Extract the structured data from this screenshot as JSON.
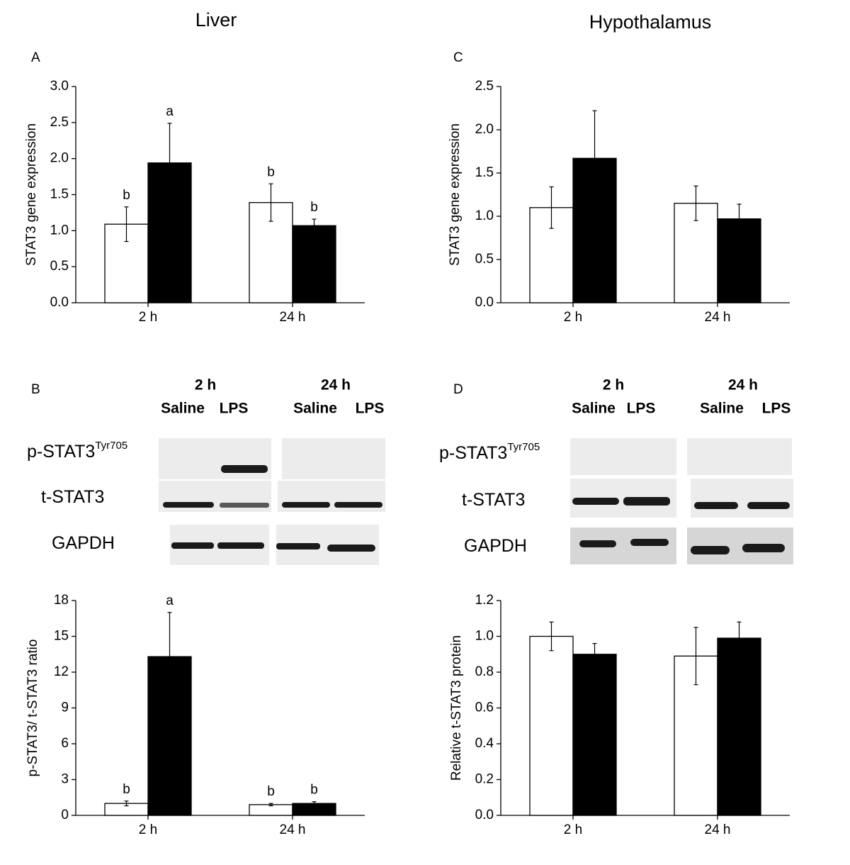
{
  "columns": [
    "Liver",
    "Hypothalamus"
  ],
  "blots": [
    {
      "groups": [
        {
          "time": "2 h",
          "conditions": [
            "Saline",
            "LPS"
          ]
        },
        {
          "time": "24 h",
          "conditions": [
            "Saline",
            "LPS"
          ]
        }
      ],
      "rows": [
        {
          "label": "p-STAT3",
          "sup": "Tyr705"
        },
        {
          "label": "t-STAT3"
        },
        {
          "label": "GAPDH"
        }
      ]
    },
    {
      "groups": [
        {
          "time": "2 h",
          "conditions": [
            "Saline",
            "LPS"
          ]
        },
        {
          "time": "24 h",
          "conditions": [
            "Saline",
            "LPS"
          ]
        }
      ],
      "rows": [
        {
          "label": "p-STAT3",
          "sup": "Tyr705"
        },
        {
          "label": "t-STAT3"
        },
        {
          "label": "GAPDH"
        }
      ]
    }
  ],
  "chart_data": [
    {
      "type": "bar",
      "panel": "A",
      "ylabel": "STAT3 gene expression",
      "categories": [
        "2 h",
        "24 h"
      ],
      "series": [
        {
          "color": "#ffffff",
          "values": [
            1.09,
            1.39
          ],
          "errors": [
            0.24,
            0.26
          ],
          "letters": [
            "b",
            "b"
          ]
        },
        {
          "color": "#000000",
          "values": [
            1.94,
            1.07
          ],
          "errors": [
            0.55,
            0.09
          ],
          "letters": [
            "a",
            "b"
          ]
        }
      ],
      "ylim": [
        0,
        3
      ],
      "yticks": [
        {
          "value": 0,
          "label": "0.0"
        },
        0.5,
        {
          "value": 1,
          "label": "1.0"
        },
        1.5,
        {
          "value": 2,
          "label": "2.0"
        },
        2.5,
        {
          "value": 3,
          "label": "3.0"
        }
      ]
    },
    {
      "type": "bar",
      "panel": "B",
      "ylabel": "p-STAT3/ t-STAT3 ratio",
      "categories": [
        "2 h",
        "24 h"
      ],
      "series": [
        {
          "color": "#ffffff",
          "values": [
            1.0,
            0.9
          ],
          "errors": [
            0.2,
            0.1
          ],
          "letters": [
            "b",
            "b"
          ]
        },
        {
          "color": "#000000",
          "values": [
            13.3,
            1.0
          ],
          "errors": [
            3.7,
            0.15
          ],
          "letters": [
            "a",
            "b"
          ]
        }
      ],
      "ylim": [
        0,
        18
      ],
      "yticks": [
        0,
        3,
        6,
        9,
        12,
        15,
        18
      ]
    },
    {
      "type": "bar",
      "panel": "C",
      "ylabel": "STAT3 gene expression",
      "categories": [
        "2 h",
        "24 h"
      ],
      "series": [
        {
          "color": "#ffffff",
          "values": [
            1.1,
            1.15
          ],
          "errors": [
            0.24,
            0.2
          ]
        },
        {
          "color": "#000000",
          "values": [
            1.67,
            0.97
          ],
          "errors": [
            0.55,
            0.17
          ]
        }
      ],
      "ylim": [
        0,
        2.5
      ],
      "yticks": [
        {
          "value": 0,
          "label": "0.0"
        },
        0.5,
        {
          "value": 1,
          "label": "1.0"
        },
        1.5,
        {
          "value": 2,
          "label": "2.0"
        },
        2.5
      ]
    },
    {
      "type": "bar",
      "panel": "D",
      "ylabel": "Relative t-STAT3 protein",
      "categories": [
        "2 h",
        "24 h"
      ],
      "series": [
        {
          "color": "#ffffff",
          "values": [
            1.0,
            0.89
          ],
          "errors": [
            0.08,
            0.16
          ]
        },
        {
          "color": "#000000",
          "values": [
            0.9,
            0.99
          ],
          "errors": [
            0.06,
            0.09
          ]
        }
      ],
      "ylim": [
        0,
        1.2
      ],
      "yticks": [
        {
          "value": 0,
          "label": "0.0"
        },
        0.2,
        0.4,
        0.6,
        0.8,
        {
          "value": 1,
          "label": "1.0"
        },
        1.2
      ]
    }
  ]
}
